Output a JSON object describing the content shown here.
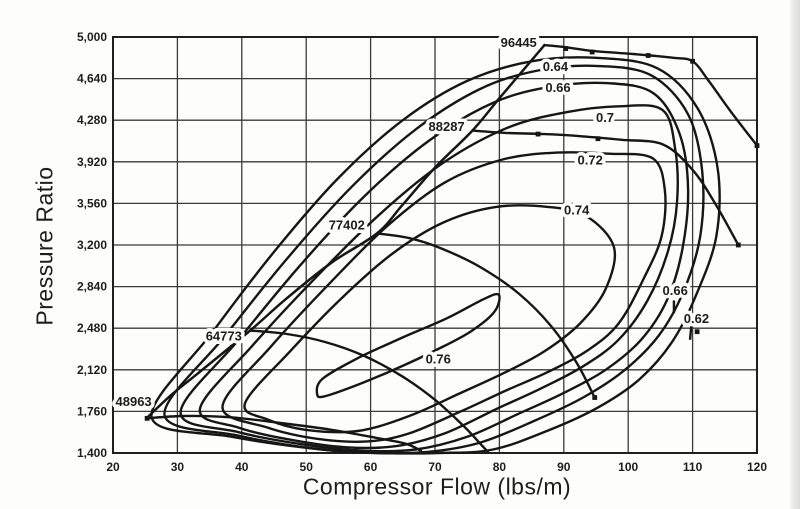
{
  "chart_data": {
    "type": "contour-map",
    "title": "",
    "xlabel": "Compressor Flow (lbs/m)",
    "ylabel": "Pressure Ratio",
    "xlim": [
      20,
      120
    ],
    "ylim": [
      1.4,
      5.0
    ],
    "grid": true,
    "legend": null,
    "x_ticks": [
      20,
      30,
      40,
      50,
      60,
      70,
      80,
      90,
      100,
      110,
      120
    ],
    "y_ticks": [
      {
        "value": 1.4,
        "label": "1,400"
      },
      {
        "value": 1.76,
        "label": "1,760"
      },
      {
        "value": 2.12,
        "label": "2,120"
      },
      {
        "value": 2.48,
        "label": "2,480"
      },
      {
        "value": 2.84,
        "label": "2,840"
      },
      {
        "value": 3.2,
        "label": "3,200"
      },
      {
        "value": 3.56,
        "label": "3,560"
      },
      {
        "value": 3.92,
        "label": "3,920"
      },
      {
        "value": 4.28,
        "label": "4,280"
      },
      {
        "value": 4.64,
        "label": "4,640"
      },
      {
        "value": 5.0,
        "label": "5,000"
      }
    ],
    "surge_line": [
      [
        25.2,
        1.7
      ],
      [
        29,
        1.9
      ],
      [
        33.2,
        2.09
      ],
      [
        41.3,
        2.46
      ],
      [
        47,
        2.74
      ],
      [
        54,
        3.05
      ],
      [
        61,
        3.3
      ],
      [
        65,
        3.55
      ],
      [
        70,
        3.87
      ],
      [
        75.8,
        4.19
      ],
      [
        80,
        4.47
      ],
      [
        83.5,
        4.7
      ],
      [
        87,
        4.93
      ]
    ],
    "speed_lines": [
      {
        "label": "48963",
        "label_pos": [
          23.2,
          1.84
        ],
        "points": [
          [
            25.2,
            1.7
          ],
          [
            31,
            1.72
          ],
          [
            38,
            1.71
          ],
          [
            46,
            1.66
          ],
          [
            54,
            1.6
          ],
          [
            61,
            1.53
          ],
          [
            65.5,
            1.48
          ],
          [
            67.8,
            1.42
          ]
        ]
      },
      {
        "label": "64773",
        "label_pos": [
          37.2,
          2.41
        ],
        "points": [
          [
            41.3,
            2.46
          ],
          [
            47,
            2.43
          ],
          [
            53,
            2.36
          ],
          [
            59,
            2.24
          ],
          [
            65,
            2.06
          ],
          [
            70,
            1.86
          ],
          [
            74.5,
            1.63
          ],
          [
            77.2,
            1.47
          ],
          [
            78.2,
            1.41
          ]
        ]
      },
      {
        "label": "77402",
        "label_pos": [
          56.3,
          3.37
        ],
        "points": [
          [
            61,
            3.3
          ],
          [
            66,
            3.26
          ],
          [
            71,
            3.17
          ],
          [
            77,
            3.01
          ],
          [
            83,
            2.78
          ],
          [
            88,
            2.5
          ],
          [
            92,
            2.18
          ],
          [
            94.8,
            1.88
          ]
        ]
      },
      {
        "label": "88287",
        "label_pos": [
          71.8,
          4.22
        ],
        "points": [
          [
            75.8,
            4.19
          ],
          [
            81,
            4.17
          ],
          [
            87,
            4.16
          ],
          [
            93,
            4.14
          ],
          [
            99,
            4.11
          ],
          [
            105.4,
            4.07
          ],
          [
            110,
            3.85
          ],
          [
            113.6,
            3.55
          ],
          [
            117.1,
            3.2
          ]
        ]
      },
      {
        "label": "96445",
        "label_pos": [
          83.0,
          4.95
        ],
        "points": [
          [
            87,
            4.93
          ],
          [
            90.5,
            4.91
          ],
          [
            94.4,
            4.88
          ],
          [
            99,
            4.86
          ],
          [
            103.5,
            4.84
          ],
          [
            107,
            4.82
          ],
          [
            110,
            4.79
          ],
          [
            112.5,
            4.62
          ],
          [
            116,
            4.35
          ],
          [
            120,
            4.06
          ]
        ]
      }
    ],
    "efficiency_contours": [
      {
        "value": 0.62,
        "labels": [
          {
            "text": "0.62",
            "pos": [
              110.6,
              2.56
            ]
          }
        ],
        "points": [
          [
            26,
            1.71
          ],
          [
            35.5,
            2.45
          ],
          [
            45,
            3.14
          ],
          [
            55,
            3.78
          ],
          [
            65,
            4.28
          ],
          [
            75,
            4.62
          ],
          [
            85,
            4.79
          ],
          [
            95,
            4.82
          ],
          [
            104.5,
            4.73
          ],
          [
            110.8,
            4.38
          ],
          [
            113.9,
            3.86
          ],
          [
            113.7,
            3.28
          ],
          [
            110.5,
            2.76
          ],
          [
            106.8,
            2.36
          ],
          [
            101.8,
            2.04
          ],
          [
            95.5,
            1.8
          ],
          [
            87.8,
            1.6
          ],
          [
            79,
            1.43
          ],
          [
            70.5,
            1.4
          ],
          [
            62,
            1.4
          ],
          [
            52.5,
            1.43
          ],
          [
            38.5,
            1.54
          ]
        ]
      },
      {
        "value": 0.64,
        "labels": [
          {
            "text": "0.64",
            "pos": [
              88.7,
              4.74
            ]
          }
        ],
        "points": [
          [
            28,
            1.73
          ],
          [
            37.5,
            2.42
          ],
          [
            47,
            3.08
          ],
          [
            57,
            3.7
          ],
          [
            67,
            4.2
          ],
          [
            77,
            4.55
          ],
          [
            86,
            4.71
          ],
          [
            95,
            4.75
          ],
          [
            103.5,
            4.67
          ],
          [
            109.3,
            4.33
          ],
          [
            111.5,
            3.83
          ],
          [
            111.2,
            3.28
          ],
          [
            108.6,
            2.8
          ],
          [
            104.8,
            2.42
          ],
          [
            99.5,
            2.12
          ],
          [
            93,
            1.88
          ],
          [
            85.5,
            1.68
          ],
          [
            77,
            1.49
          ],
          [
            69,
            1.41
          ],
          [
            60.5,
            1.4
          ],
          [
            51,
            1.44
          ],
          [
            39.5,
            1.55
          ]
        ]
      },
      {
        "value": 0.66,
        "labels": [
          {
            "text": "0.66",
            "pos": [
              89.1,
              4.56
            ]
          },
          {
            "text": "0.66",
            "pos": [
              107.3,
              2.8
            ]
          }
        ],
        "points": [
          [
            30.5,
            1.75
          ],
          [
            39.5,
            2.38
          ],
          [
            49,
            3.02
          ],
          [
            59,
            3.62
          ],
          [
            69,
            4.1
          ],
          [
            79,
            4.43
          ],
          [
            88,
            4.57
          ],
          [
            97,
            4.6
          ],
          [
            104,
            4.51
          ],
          [
            108,
            4.16
          ],
          [
            109.3,
            3.68
          ],
          [
            108.4,
            3.16
          ],
          [
            106,
            2.72
          ],
          [
            102,
            2.38
          ],
          [
            96.5,
            2.12
          ],
          [
            90,
            1.92
          ],
          [
            83,
            1.74
          ],
          [
            75,
            1.54
          ],
          [
            67,
            1.43
          ],
          [
            59,
            1.42
          ],
          [
            50,
            1.47
          ],
          [
            39.5,
            1.58
          ]
        ]
      },
      {
        "value": 0.7,
        "labels": [
          {
            "text": "0.7",
            "pos": [
              96.4,
              4.3
            ]
          }
        ],
        "points": [
          [
            33.5,
            1.78
          ],
          [
            41.5,
            2.32
          ],
          [
            51.5,
            2.92
          ],
          [
            61.5,
            3.47
          ],
          [
            71.5,
            3.92
          ],
          [
            81.5,
            4.22
          ],
          [
            90.5,
            4.35
          ],
          [
            98.5,
            4.4
          ],
          [
            105.3,
            4.37
          ],
          [
            107.3,
            4.03
          ],
          [
            107.6,
            3.58
          ],
          [
            106.2,
            3.15
          ],
          [
            103,
            2.72
          ],
          [
            98.5,
            2.38
          ],
          [
            93,
            2.15
          ],
          [
            86.5,
            1.96
          ],
          [
            79.5,
            1.78
          ],
          [
            71.5,
            1.57
          ],
          [
            64,
            1.46
          ],
          [
            56,
            1.45
          ],
          [
            47,
            1.52
          ],
          [
            39.5,
            1.62
          ]
        ]
      },
      {
        "value": 0.72,
        "labels": [
          {
            "text": "0.72",
            "pos": [
              94.1,
              3.93
            ]
          }
        ],
        "points": [
          [
            37,
            1.8
          ],
          [
            44.5,
            2.32
          ],
          [
            53.5,
            2.86
          ],
          [
            62.5,
            3.36
          ],
          [
            71.5,
            3.74
          ],
          [
            80.5,
            3.94
          ],
          [
            89,
            4.0
          ],
          [
            97,
            3.99
          ],
          [
            103.8,
            3.95
          ],
          [
            105.7,
            3.67
          ],
          [
            105.2,
            3.28
          ],
          [
            102.5,
            2.92
          ],
          [
            98.5,
            2.52
          ],
          [
            93.5,
            2.28
          ],
          [
            87.5,
            2.1
          ],
          [
            81,
            1.94
          ],
          [
            74,
            1.76
          ],
          [
            66,
            1.57
          ],
          [
            59.5,
            1.5
          ],
          [
            52,
            1.52
          ],
          [
            44,
            1.62
          ]
        ]
      },
      {
        "value": 0.74,
        "labels": [
          {
            "text": "0.74",
            "pos": [
              92.0,
              3.5
            ]
          }
        ],
        "points": [
          [
            40.5,
            1.83
          ],
          [
            47.5,
            2.28
          ],
          [
            55.5,
            2.74
          ],
          [
            63.5,
            3.13
          ],
          [
            71.5,
            3.4
          ],
          [
            79.5,
            3.53
          ],
          [
            87.5,
            3.53
          ],
          [
            93.5,
            3.45
          ],
          [
            97.8,
            3.18
          ],
          [
            96.5,
            2.82
          ],
          [
            92.5,
            2.52
          ],
          [
            87,
            2.28
          ],
          [
            81,
            2.1
          ],
          [
            74,
            1.92
          ],
          [
            66,
            1.72
          ],
          [
            58,
            1.59
          ],
          [
            50,
            1.6
          ],
          [
            44,
            1.69
          ]
        ]
      },
      {
        "value": 0.76,
        "labels": [
          {
            "text": "0.76",
            "pos": [
              70.5,
              2.21
            ]
          }
        ],
        "points": [
          [
            51.7,
            1.91
          ],
          [
            52.5,
            2.04
          ],
          [
            58,
            2.22
          ],
          [
            65,
            2.4
          ],
          [
            72,
            2.57
          ],
          [
            77.5,
            2.73
          ],
          [
            79.9,
            2.77
          ],
          [
            79.2,
            2.62
          ],
          [
            75.5,
            2.45
          ],
          [
            70.5,
            2.3
          ],
          [
            64,
            2.13
          ],
          [
            57.5,
            1.98
          ],
          [
            52.8,
            1.89
          ]
        ]
      }
    ],
    "markers": [
      [
        25.3,
        1.7
      ],
      [
        90.3,
        4.9
      ],
      [
        94.4,
        4.87
      ],
      [
        103.1,
        4.84
      ],
      [
        110,
        4.79
      ],
      [
        120,
        4.06
      ],
      [
        86,
        4.16
      ],
      [
        95.3,
        4.12
      ],
      [
        117.1,
        3.2
      ],
      [
        94.8,
        1.88
      ],
      [
        110.7,
        2.45
      ]
    ],
    "dashes": [
      {
        "from": [
          107.1,
          2.72
        ],
        "to": [
          107.1,
          2.61
        ]
      },
      {
        "from": [
          109.8,
          2.5
        ],
        "to": [
          109.6,
          2.38
        ]
      }
    ],
    "colors": {
      "line": "#161616",
      "grid": "#3a3a3a",
      "text": "#1d1d1d",
      "paper": "#fdfdfc"
    }
  }
}
